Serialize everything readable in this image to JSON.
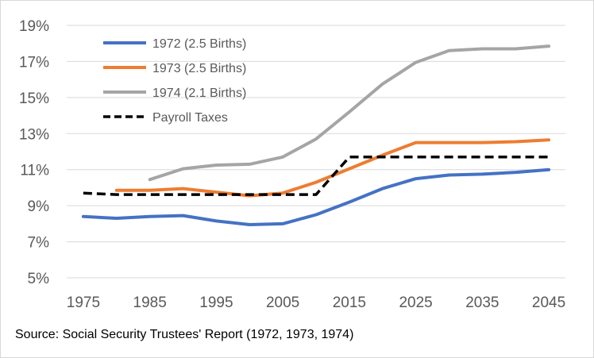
{
  "chart_data": {
    "type": "line",
    "x": [
      1975,
      1980,
      1985,
      1990,
      1995,
      2000,
      2005,
      2010,
      2015,
      2020,
      2025,
      2030,
      2035,
      2040,
      2045
    ],
    "xticks": [
      "1975",
      "1985",
      "1995",
      "2005",
      "2015",
      "2025",
      "2035",
      "2045"
    ],
    "yticks": [
      "19%",
      "17%",
      "15%",
      "13%",
      "11%",
      "9%",
      "7%",
      "5%"
    ],
    "ylim": [
      5,
      19
    ],
    "grid": true,
    "legend_position": "top-left",
    "series": [
      {
        "name": "1972 (2.5 Births)",
        "color": "#4472c4",
        "dash": false,
        "values": [
          8.4,
          8.3,
          8.4,
          8.45,
          8.15,
          7.95,
          8.0,
          8.5,
          9.2,
          9.95,
          10.5,
          10.7,
          10.75,
          10.85,
          11.0
        ]
      },
      {
        "name": "1973 (2.5 Births)",
        "color": "#ed7d31",
        "dash": false,
        "values": [
          null,
          9.85,
          9.85,
          9.95,
          9.75,
          9.55,
          9.7,
          10.3,
          11.05,
          11.8,
          12.5,
          12.5,
          12.5,
          12.55,
          12.65
        ]
      },
      {
        "name": "1974 (2.1 Births)",
        "color": "#a5a5a5",
        "dash": false,
        "values": [
          null,
          null,
          10.45,
          11.05,
          11.25,
          11.3,
          11.7,
          12.7,
          14.2,
          15.75,
          16.95,
          17.6,
          17.7,
          17.7,
          17.85
        ]
      },
      {
        "name": "Payroll Taxes",
        "color": "#000000",
        "dash": true,
        "values": [
          9.7,
          9.62,
          9.62,
          9.62,
          9.62,
          9.62,
          9.62,
          9.62,
          11.7,
          11.7,
          11.7,
          11.7,
          11.7,
          11.7,
          11.7
        ]
      }
    ]
  },
  "source": "Source: Social Security Trustees' Report (1972, 1973, 1974)"
}
